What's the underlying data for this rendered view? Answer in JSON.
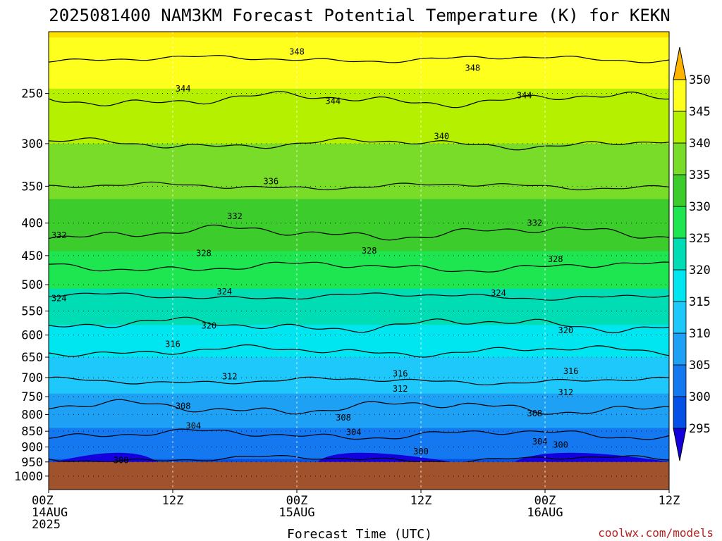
{
  "chart_data": {
    "type": "contour",
    "title": "2025081400 NAM3KM Forecast Potential Temperature (K) for KEKN",
    "xlabel": "Forecast Time (UTC)",
    "ylabel": "",
    "credit": "coolwx.com/models",
    "y_axis": {
      "scale": "log",
      "reversed": true,
      "range": [
        1050,
        200
      ],
      "ticks": [
        250,
        300,
        350,
        400,
        450,
        500,
        550,
        600,
        650,
        700,
        750,
        800,
        850,
        900,
        950,
        1000
      ],
      "tick_labels": [
        "250",
        "300",
        "350",
        "400",
        "450",
        "500",
        "550",
        "600",
        "650",
        "700",
        "750",
        "800",
        "850",
        "900",
        "950",
        "1000"
      ]
    },
    "x_axis": {
      "range_hours": [
        0,
        60
      ],
      "ticks": [
        {
          "hour": 0,
          "lines": [
            "00Z",
            "14AUG",
            "2025"
          ]
        },
        {
          "hour": 12,
          "lines": [
            "12Z"
          ]
        },
        {
          "hour": 24,
          "lines": [
            "00Z",
            "15AUG"
          ]
        },
        {
          "hour": 36,
          "lines": [
            "12Z"
          ]
        },
        {
          "hour": 48,
          "lines": [
            "00Z",
            "16AUG"
          ]
        },
        {
          "hour": 60,
          "lines": [
            "12Z"
          ]
        }
      ]
    },
    "grid": true,
    "surface_pressure": 950,
    "ground_color": "#a0522d",
    "colorbar": {
      "position": "right",
      "levels": [
        295,
        300,
        305,
        310,
        315,
        320,
        325,
        330,
        335,
        340,
        345,
        350
      ],
      "colors": [
        "#1400dc",
        "#0a28e6",
        "#0550e6",
        "#1478f0",
        "#1ea0f5",
        "#1ec8fa",
        "#00e6f0",
        "#00dcb4",
        "#1ee650",
        "#3ccd2d",
        "#78dc28",
        "#b4f000",
        "#ffff1e",
        "#ffe100",
        "#ffb400"
      ],
      "tick_labels": [
        "295",
        "300",
        "305",
        "310",
        "315",
        "320",
        "325",
        "330",
        "335",
        "340",
        "345",
        "350"
      ]
    },
    "profile": {
      "pressure_hpa": [
        200,
        250,
        300,
        350,
        400,
        450,
        500,
        550,
        600,
        650,
        700,
        750,
        800,
        850,
        900,
        950
      ],
      "theta_k": [
        350.5,
        344.5,
        340,
        336,
        333,
        329.5,
        325.5,
        322,
        318.5,
        315,
        312.5,
        309.5,
        307,
        304.5,
        302,
        299.5
      ]
    },
    "contour_levels": [
      300,
      304,
      308,
      312,
      316,
      320,
      324,
      328,
      332,
      336,
      340,
      344,
      348
    ],
    "contour_labels": [
      {
        "value": "348",
        "hour": 24,
        "pressure": 215
      },
      {
        "value": "348",
        "hour": 41,
        "pressure": 228
      },
      {
        "value": "344",
        "hour": 13,
        "pressure": 246
      },
      {
        "value": "344",
        "hour": 27.5,
        "pressure": 257
      },
      {
        "value": "344",
        "hour": 46,
        "pressure": 252
      },
      {
        "value": "340",
        "hour": 38,
        "pressure": 292
      },
      {
        "value": "336",
        "hour": 21.5,
        "pressure": 344
      },
      {
        "value": "332",
        "hour": 18,
        "pressure": 390
      },
      {
        "value": "332",
        "hour": 1,
        "pressure": 418
      },
      {
        "value": "332",
        "hour": 47,
        "pressure": 400
      },
      {
        "value": "328",
        "hour": 15,
        "pressure": 446
      },
      {
        "value": "328",
        "hour": 31,
        "pressure": 442
      },
      {
        "value": "328",
        "hour": 49,
        "pressure": 456
      },
      {
        "value": "324",
        "hour": 17,
        "pressure": 513
      },
      {
        "value": "324",
        "hour": 1,
        "pressure": 525
      },
      {
        "value": "324",
        "hour": 43.5,
        "pressure": 515
      },
      {
        "value": "320",
        "hour": 15.5,
        "pressure": 580
      },
      {
        "value": "320",
        "hour": 50,
        "pressure": 590
      },
      {
        "value": "316",
        "hour": 12,
        "pressure": 620
      },
      {
        "value": "316",
        "hour": 34,
        "pressure": 690
      },
      {
        "value": "316",
        "hour": 50.5,
        "pressure": 684
      },
      {
        "value": "312",
        "hour": 17.5,
        "pressure": 697
      },
      {
        "value": "312",
        "hour": 34,
        "pressure": 729
      },
      {
        "value": "312",
        "hour": 50,
        "pressure": 738
      },
      {
        "value": "308",
        "hour": 13,
        "pressure": 776
      },
      {
        "value": "308",
        "hour": 28.5,
        "pressure": 809
      },
      {
        "value": "308",
        "hour": 47,
        "pressure": 797
      },
      {
        "value": "304",
        "hour": 14,
        "pressure": 834
      },
      {
        "value": "304",
        "hour": 29.5,
        "pressure": 853
      },
      {
        "value": "304",
        "hour": 47.5,
        "pressure": 883
      },
      {
        "value": "300",
        "hour": 7,
        "pressure": 945
      },
      {
        "value": "300",
        "hour": 36,
        "pressure": 915
      },
      {
        "value": "300",
        "hour": 49.5,
        "pressure": 893
      }
    ]
  }
}
